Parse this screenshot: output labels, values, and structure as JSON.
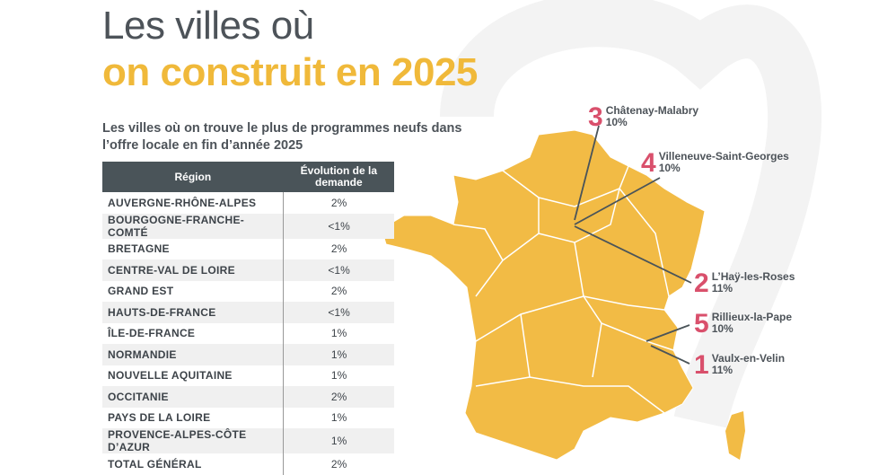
{
  "title_line1": "Les villes où",
  "title_line2": "on construit en 2025",
  "subtitle": "Les villes où on trouve le plus de programmes neufs dans l’offre locale en fin d’année 2025",
  "table": {
    "headers": [
      "Région",
      "Évolution de la demande"
    ],
    "rows": [
      [
        "AUVERGNE-RHÔNE-ALPES",
        "2%"
      ],
      [
        "BOURGOGNE-FRANCHE-COMTÉ",
        "<1%"
      ],
      [
        "BRETAGNE",
        "2%"
      ],
      [
        "CENTRE-VAL DE LOIRE",
        "<1%"
      ],
      [
        "GRAND EST",
        "2%"
      ],
      [
        "HAUTS-DE-FRANCE",
        "<1%"
      ],
      [
        "ÎLE-DE-FRANCE",
        "1%"
      ],
      [
        "NORMANDIE",
        "1%"
      ],
      [
        "NOUVELLE AQUITAINE",
        "1%"
      ],
      [
        "OCCITANIE",
        "2%"
      ],
      [
        "PAYS DE LA LOIRE",
        "1%"
      ],
      [
        "PROVENCE-ALPES-CÔTE D’AZUR",
        "1%"
      ],
      [
        "TOTAL GÉNÉRAL",
        "2%"
      ]
    ]
  },
  "cities": [
    {
      "rank": "3",
      "name": "Châtenay-Malabry",
      "value": "10%"
    },
    {
      "rank": "4",
      "name": "Villeneuve-Saint-Georges",
      "value": "10%"
    },
    {
      "rank": "2",
      "name": "L’Haÿ-les-Roses",
      "value": "11%"
    },
    {
      "rank": "5",
      "name": "Rillieux-la-Pape",
      "value": "10%"
    },
    {
      "rank": "1",
      "name": "Vaulx-en-Velin",
      "value": "11%"
    }
  ],
  "colors": {
    "map": "#f2bb45",
    "accent": "#d9506c",
    "header": "#4a5459"
  }
}
